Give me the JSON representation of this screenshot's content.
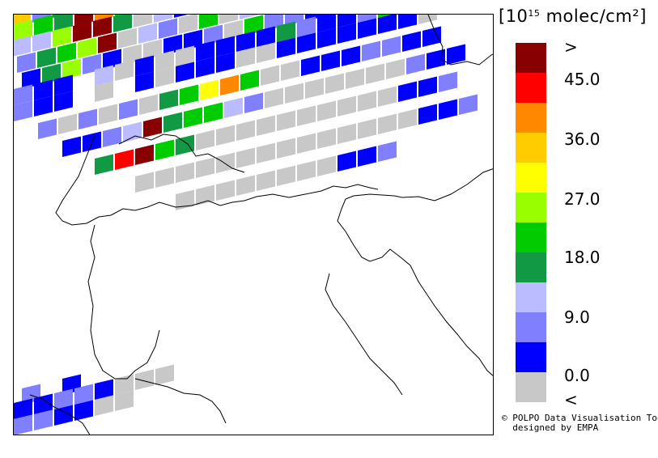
{
  "legend": {
    "unit_base": "[10",
    "unit_exp": "15",
    "unit_rest": " molec/cm²]",
    "colors": [
      "#c8c8c8",
      "#0000ff",
      "#8080ff",
      "#bbbbff",
      "#119944",
      "#00cc00",
      "#99ff00",
      "#ffff00",
      "#ffcc00",
      "#ff8800",
      "#ff0000",
      "#880000"
    ],
    "labels": [
      "<",
      "0.0",
      "9.0",
      "18.0",
      "27.0",
      "36.0",
      "45.0",
      ">"
    ]
  },
  "credit": {
    "line1": "© POLPO Data Visualisation Tool",
    "line2": "  designed by EMPA"
  }
}
